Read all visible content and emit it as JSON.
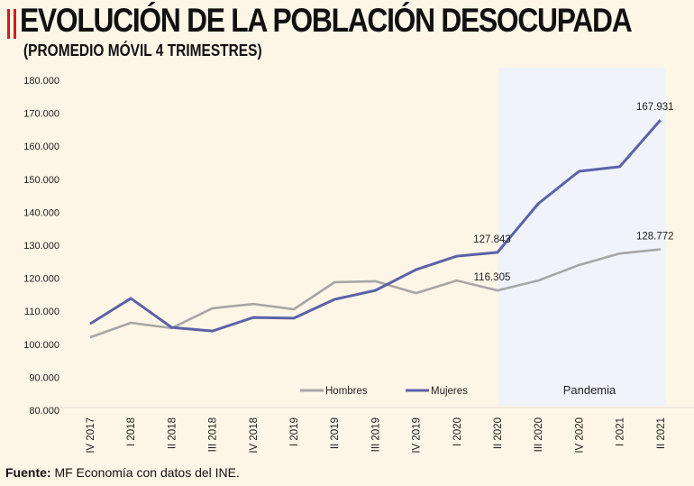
{
  "header": {
    "title": "EVOLUCIÓN DE LA POBLACIÓN DESOCUPADA",
    "subtitle": "(PROMEDIO MÓVIL 4 TRIMESTRES)"
  },
  "footer": {
    "source_label": "Fuente:",
    "source_text": " MF Economía con datos del INE."
  },
  "chart_data": {
    "type": "line",
    "title": "EVOLUCIÓN DE LA POBLACIÓN DESOCUPADA",
    "subtitle": "(PROMEDIO MÓVIL 4 TRIMESTRES)",
    "categories": [
      "IV 2017",
      "I 2018",
      "II 2018",
      "III 2018",
      "IV 2018",
      "I 2019",
      "II 2019",
      "III 2019",
      "IV 2019",
      "I 2020",
      "II 2020",
      "III 2020",
      "IV 2020",
      "I 2021",
      "II 2021"
    ],
    "ylim": [
      80000,
      180000
    ],
    "yticks": [
      "80.000",
      "90.000",
      "100.000",
      "110.000",
      "120.000",
      "130.000",
      "140.000",
      "150.000",
      "160.000",
      "170.000",
      "180.000"
    ],
    "grid": false,
    "legend": "bottom-center",
    "series": [
      {
        "name": "Hombres",
        "color": "#a6a6a6",
        "values": [
          102100,
          106500,
          104900,
          110900,
          112200,
          110600,
          118800,
          119100,
          115500,
          119300,
          116305,
          119300,
          124000,
          127500,
          128772
        ]
      },
      {
        "name": "Mujeres",
        "color": "#5b62a8",
        "values": [
          106200,
          113900,
          105100,
          104000,
          108100,
          107900,
          113600,
          116300,
          122600,
          126700,
          127843,
          142600,
          152400,
          153800,
          167931
        ]
      }
    ],
    "data_labels": [
      {
        "series": "Mujeres",
        "category": "II 2020",
        "text": "127.843"
      },
      {
        "series": "Hombres",
        "category": "II 2020",
        "text": "116.305"
      },
      {
        "series": "Mujeres",
        "category": "II 2021",
        "text": "167.931"
      },
      {
        "series": "Hombres",
        "category": "II 2021",
        "text": "128.772"
      }
    ],
    "annotations": [
      {
        "text": "Pandemia",
        "from": "II 2020",
        "to": "II 2021",
        "color": "#f0f3fa"
      }
    ]
  }
}
